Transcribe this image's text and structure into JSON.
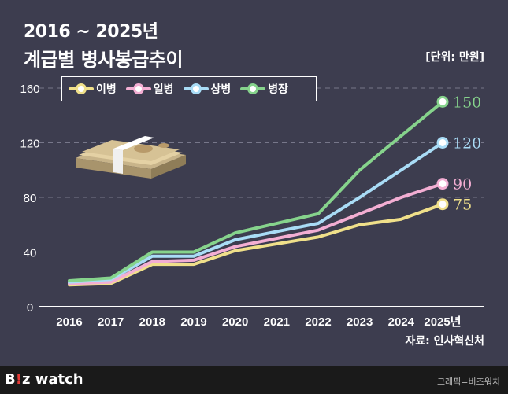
{
  "header": {
    "subtitle": "2016 ~ 2025년",
    "title": "계급별 병사봉급추이",
    "unit": "[단위: 만원]"
  },
  "source": "자료: 인사혁신처",
  "footer": {
    "logo_main": "B",
    "logo_accent": "!",
    "logo_rest": "z watch",
    "credit": "그래픽=비즈워치"
  },
  "chart_data": {
    "type": "line",
    "categories": [
      "2016",
      "2017",
      "2018",
      "2019",
      "2020",
      "2021",
      "2022",
      "2023",
      "2024",
      "2025년"
    ],
    "ylim": [
      0,
      160
    ],
    "yticks": [
      0,
      40,
      80,
      120,
      160
    ],
    "series": [
      {
        "name": "이병",
        "color": "#f0e08a",
        "values": [
          16,
          17,
          31,
          31,
          41,
          46,
          51,
          60,
          64,
          75
        ],
        "end_label": "75"
      },
      {
        "name": "일병",
        "color": "#f3aed3",
        "values": [
          17,
          18,
          33,
          34,
          44,
          50,
          56,
          68,
          80,
          90
        ],
        "end_label": "90"
      },
      {
        "name": "상병",
        "color": "#a9dcf6",
        "values": [
          18,
          20,
          37,
          37,
          49,
          55,
          61,
          80,
          100,
          120
        ],
        "end_label": "120"
      },
      {
        "name": "병장",
        "color": "#86d38c",
        "values": [
          19,
          21,
          40,
          40,
          54,
          61,
          68,
          100,
          125,
          150
        ],
        "end_label": "150"
      }
    ]
  }
}
